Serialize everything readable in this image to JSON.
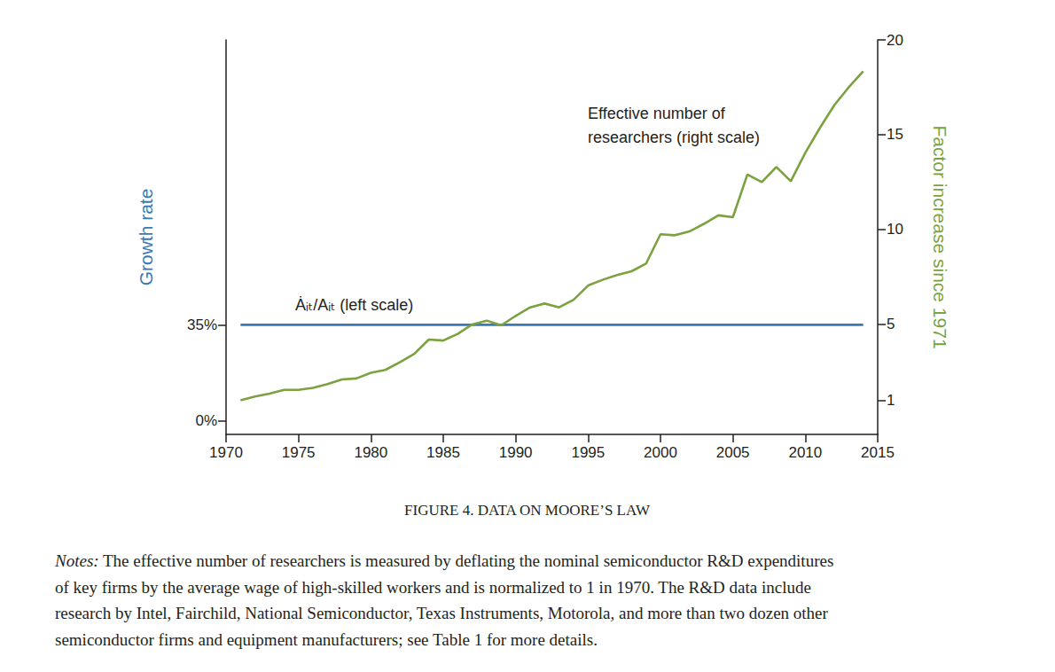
{
  "chart_data": {
    "type": "line",
    "title": "FIGURE 4. DATA ON MOORE’S LAW",
    "notes_label": "Notes:",
    "notes": [
      "The effective number of researchers is measured by deflating the nominal semiconductor R&D expenditures",
      "of key firms by the average wage of high-skilled workers and is normalized to 1 in 1970. The R&D data include",
      "research by Intel, Fairchild, National Semiconductor, Texas Instruments, Motorola, and more than two dozen other",
      "semiconductor firms and equipment manufacturers; see Table 1 for more details."
    ],
    "x": [
      1971,
      1972,
      1973,
      1974,
      1975,
      1976,
      1977,
      1978,
      1979,
      1980,
      1981,
      1982,
      1983,
      1984,
      1985,
      1986,
      1987,
      1988,
      1989,
      1990,
      1991,
      1992,
      1993,
      1994,
      1995,
      1996,
      1997,
      1998,
      1999,
      2000,
      2001,
      2002,
      2003,
      2004,
      2005,
      2006,
      2007,
      2008,
      2009,
      2010,
      2011,
      2012,
      2013,
      2014
    ],
    "xlim": [
      1970,
      2015
    ],
    "xticks": [
      1970,
      1975,
      1980,
      1985,
      1990,
      1995,
      2000,
      2005,
      2010,
      2015
    ],
    "ylabel": "Growth rate",
    "ylim": [
      -5,
      139
    ],
    "yticks": [
      {
        "value": 0,
        "label": "0%"
      },
      {
        "value": 35,
        "label": "35%"
      }
    ],
    "y2label": "Factor increase since 1971",
    "y2lim": [
      -0.8,
      20
    ],
    "y2ticks": [
      1,
      5,
      10,
      15,
      20
    ],
    "grid": false,
    "series": [
      {
        "name": "Ȧᵢₜ/Aᵢₜ (left scale)",
        "color": "#3b78b6",
        "values": [
          35,
          35,
          35,
          35,
          35,
          35,
          35,
          35,
          35,
          35,
          35,
          35,
          35,
          35,
          35,
          35,
          35,
          35,
          35,
          35,
          35,
          35,
          35,
          35,
          35,
          35,
          35,
          35,
          35,
          35,
          35,
          35,
          35,
          35,
          35,
          35,
          35,
          35,
          35,
          35,
          35,
          35,
          35,
          35
        ]
      },
      {
        "name": "Effective number of\nresearchers (right scale)",
        "color": "#7ba23f",
        "axis": "y2",
        "values": [
          1.0,
          1.2,
          1.35,
          1.55,
          1.55,
          1.65,
          1.85,
          2.1,
          2.15,
          2.45,
          2.6,
          3.0,
          3.45,
          4.2,
          4.15,
          4.5,
          5.0,
          5.2,
          4.95,
          5.45,
          5.9,
          6.1,
          5.9,
          6.3,
          7.05,
          7.35,
          7.6,
          7.8,
          8.2,
          9.75,
          9.7,
          9.9,
          10.3,
          10.75,
          10.65,
          12.9,
          12.5,
          13.3,
          12.55,
          14.05,
          15.35,
          16.55,
          17.5,
          18.35
        ]
      }
    ]
  }
}
